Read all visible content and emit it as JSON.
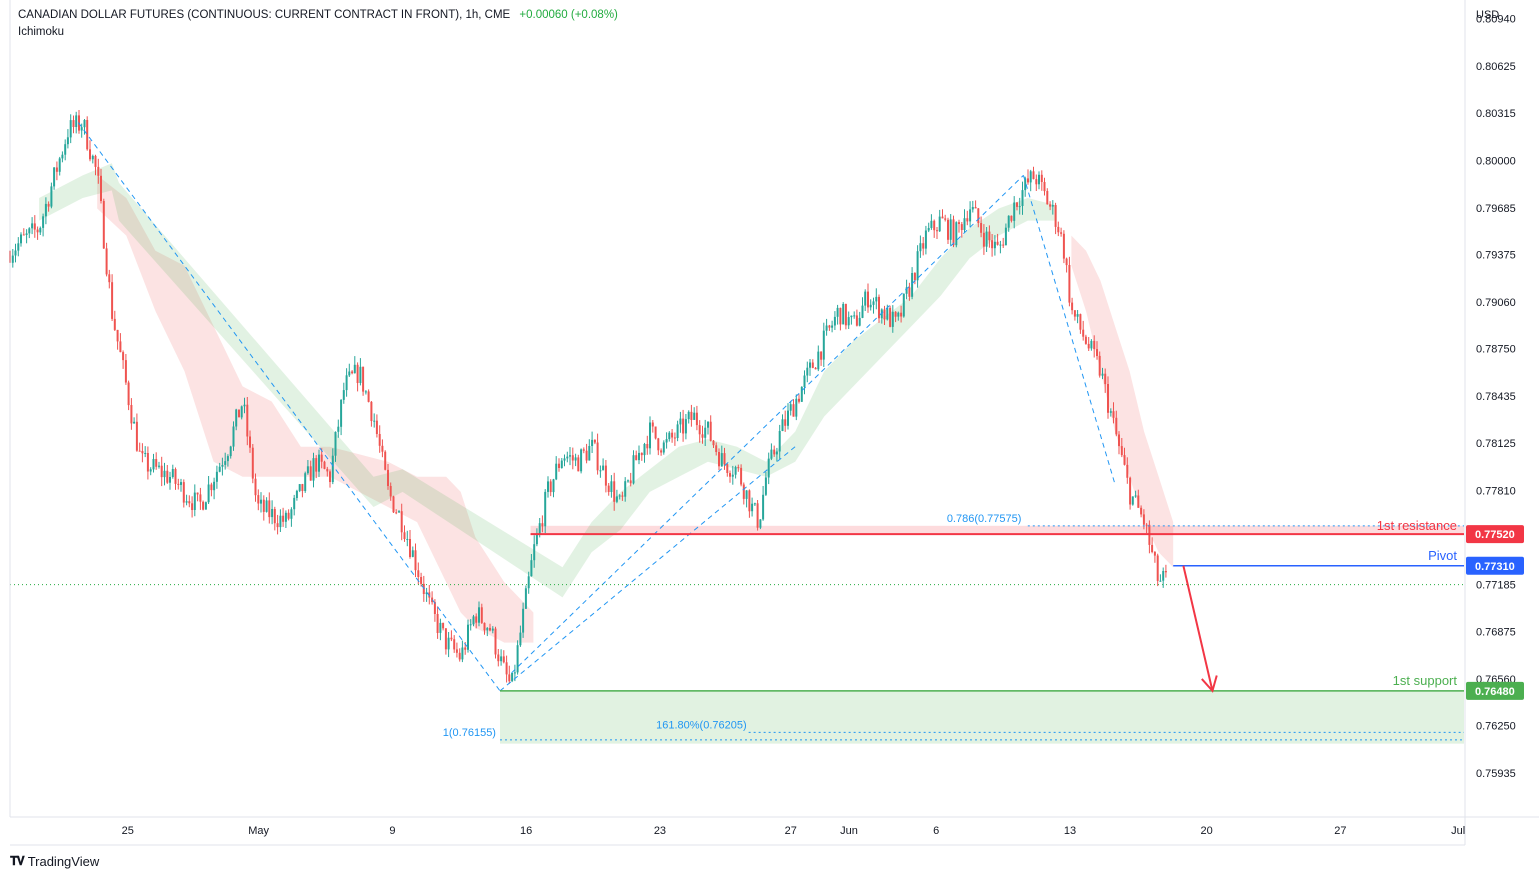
{
  "header": {
    "title": "CANADIAN DOLLAR FUTURES (CONTINUOUS: CURRENT CONTRACT IN FRONT), 1h, CME",
    "change": "+0.00060 (+0.08%)",
    "indicator": "Ichimoku"
  },
  "brand": {
    "name": "TradingView",
    "logo_icon": "tradingview-logo-icon"
  },
  "colors": {
    "up": "#26a69a",
    "down": "#ef5350",
    "resistance": "#f23645",
    "pivot": "#2962ff",
    "support": "#4caf50",
    "fib": "#2196f3",
    "arrow": "#f23645"
  },
  "chart_data": {
    "type": "candlestick",
    "currency": "USD",
    "y_ticks": [
      "0.80940",
      "0.80625",
      "0.80315",
      "0.80000",
      "0.79685",
      "0.79375",
      "0.79060",
      "0.78750",
      "0.78435",
      "0.78125",
      "0.77810",
      "0.76875",
      "0.76560",
      "0.76250",
      "0.75935"
    ],
    "ylim": [
      0.7565,
      0.8105
    ],
    "x_labels": [
      "25",
      "May",
      "9",
      "16",
      "23",
      "27",
      "Jun",
      "6",
      "13",
      "20",
      "27",
      "Jul"
    ],
    "price_path": [
      [
        0,
        0.794
      ],
      [
        0.02,
        0.7955
      ],
      [
        0.04,
        0.802
      ],
      [
        0.05,
        0.8025
      ],
      [
        0.06,
        0.799
      ],
      [
        0.07,
        0.79
      ],
      [
        0.08,
        0.785
      ],
      [
        0.09,
        0.78
      ],
      [
        0.11,
        0.779
      ],
      [
        0.13,
        0.777
      ],
      [
        0.15,
        0.781
      ],
      [
        0.16,
        0.784
      ],
      [
        0.17,
        0.777
      ],
      [
        0.19,
        0.776
      ],
      [
        0.21,
        0.78
      ],
      [
        0.22,
        0.779
      ],
      [
        0.23,
        0.785
      ],
      [
        0.24,
        0.786
      ],
      [
        0.25,
        0.783
      ],
      [
        0.26,
        0.778
      ],
      [
        0.27,
        0.776
      ],
      [
        0.28,
        0.773
      ],
      [
        0.29,
        0.77
      ],
      [
        0.3,
        0.768
      ],
      [
        0.31,
        0.767
      ],
      [
        0.32,
        0.77
      ],
      [
        0.33,
        0.769
      ],
      [
        0.34,
        0.766
      ],
      [
        0.345,
        0.765
      ],
      [
        0.35,
        0.768
      ],
      [
        0.36,
        0.774
      ],
      [
        0.37,
        0.778
      ],
      [
        0.38,
        0.7805
      ],
      [
        0.39,
        0.78
      ],
      [
        0.4,
        0.781
      ],
      [
        0.41,
        0.779
      ],
      [
        0.42,
        0.777
      ],
      [
        0.43,
        0.78
      ],
      [
        0.44,
        0.782
      ],
      [
        0.45,
        0.781
      ],
      [
        0.46,
        0.782
      ],
      [
        0.47,
        0.783
      ],
      [
        0.48,
        0.782
      ],
      [
        0.49,
        0.78
      ],
      [
        0.5,
        0.7795
      ],
      [
        0.51,
        0.777
      ],
      [
        0.515,
        0.776
      ],
      [
        0.52,
        0.779
      ],
      [
        0.53,
        0.782
      ],
      [
        0.54,
        0.784
      ],
      [
        0.55,
        0.786
      ],
      [
        0.56,
        0.788
      ],
      [
        0.57,
        0.79
      ],
      [
        0.58,
        0.789
      ],
      [
        0.59,
        0.791
      ],
      [
        0.6,
        0.79
      ],
      [
        0.61,
        0.789
      ],
      [
        0.62,
        0.792
      ],
      [
        0.63,
        0.795
      ],
      [
        0.64,
        0.796
      ],
      [
        0.65,
        0.795
      ],
      [
        0.66,
        0.797
      ],
      [
        0.67,
        0.795
      ],
      [
        0.68,
        0.794
      ],
      [
        0.69,
        0.797
      ],
      [
        0.7,
        0.7985
      ],
      [
        0.705,
        0.799
      ],
      [
        0.71,
        0.798
      ],
      [
        0.72,
        0.796
      ],
      [
        0.725,
        0.794
      ],
      [
        0.73,
        0.79
      ],
      [
        0.74,
        0.788
      ],
      [
        0.75,
        0.786
      ],
      [
        0.76,
        0.782
      ],
      [
        0.765,
        0.78
      ],
      [
        0.77,
        0.778
      ],
      [
        0.775,
        0.777
      ],
      [
        0.78,
        0.776
      ],
      [
        0.785,
        0.774
      ],
      [
        0.79,
        0.772
      ],
      [
        0.795,
        0.7722
      ]
    ],
    "levels": [
      {
        "name": "resistance",
        "label": "1st resistance",
        "value": 0.7752,
        "value_label": "0.77520"
      },
      {
        "name": "pivot",
        "label": "Pivot",
        "value": 0.7731,
        "value_label": "0.77310"
      },
      {
        "name": "support",
        "label": "1st support",
        "value": 0.7648,
        "value_label": "0.76480"
      },
      {
        "name": "current",
        "label": "",
        "value": 0.77185,
        "value_label": "0.77185"
      }
    ],
    "fib_labels": {
      "retracement": "0.786(0.77575)",
      "extension": "161.80%(0.76205)",
      "origin": "1(0.76155)"
    },
    "fib_values": {
      "retracement": 0.77575,
      "extension": 0.76205,
      "origin": 0.76155
    },
    "swing_lines": [
      [
        [
          0.047,
          0.8025
        ],
        [
          0.337,
          0.7648
        ]
      ],
      [
        [
          0.337,
          0.7648
        ],
        [
          0.54,
          0.781
        ]
      ],
      [
        [
          0.345,
          0.766
        ],
        [
          0.697,
          0.799
        ]
      ],
      [
        [
          0.697,
          0.799
        ],
        [
          0.76,
          0.7785
        ]
      ]
    ],
    "cloud_red": [
      [
        0.06,
        0.7968,
        0.799
      ],
      [
        0.08,
        0.795,
        0.7975
      ],
      [
        0.1,
        0.79,
        0.794
      ],
      [
        0.12,
        0.786,
        0.793
      ],
      [
        0.14,
        0.78,
        0.789
      ],
      [
        0.16,
        0.779,
        0.785
      ],
      [
        0.18,
        0.779,
        0.784
      ],
      [
        0.2,
        0.779,
        0.781
      ],
      [
        0.22,
        0.779,
        0.781
      ],
      [
        0.24,
        0.778,
        0.7805
      ],
      [
        0.26,
        0.777,
        0.78
      ],
      [
        0.28,
        0.776,
        0.779
      ],
      [
        0.3,
        0.772,
        0.779
      ],
      [
        0.31,
        0.77,
        0.778
      ],
      [
        0.32,
        0.769,
        0.775
      ],
      [
        0.34,
        0.768,
        0.772
      ],
      [
        0.36,
        0.768,
        0.77
      ]
    ],
    "cloud_green": [
      [
        0.02,
        0.796,
        0.7975
      ],
      [
        0.05,
        0.7975,
        0.799
      ],
      [
        0.07,
        0.798,
        0.7998
      ],
      [
        0.075,
        0.796,
        0.7985
      ],
      [
        0.25,
        0.777,
        0.779
      ],
      [
        0.27,
        0.778,
        0.7795
      ],
      [
        0.38,
        0.771,
        0.773
      ],
      [
        0.4,
        0.774,
        0.776
      ],
      [
        0.42,
        0.7755,
        0.778
      ],
      [
        0.44,
        0.778,
        0.7795
      ],
      [
        0.46,
        0.779,
        0.781
      ],
      [
        0.48,
        0.78,
        0.7815
      ],
      [
        0.5,
        0.7795,
        0.781
      ],
      [
        0.52,
        0.779,
        0.78
      ],
      [
        0.54,
        0.78,
        0.782
      ],
      [
        0.56,
        0.783,
        0.786
      ],
      [
        0.58,
        0.785,
        0.788
      ],
      [
        0.6,
        0.787,
        0.7895
      ],
      [
        0.62,
        0.789,
        0.791
      ],
      [
        0.64,
        0.791,
        0.7935
      ],
      [
        0.66,
        0.7935,
        0.7955
      ],
      [
        0.68,
        0.795,
        0.7968
      ],
      [
        0.7,
        0.796,
        0.7975
      ],
      [
        0.72,
        0.796,
        0.797
      ]
    ],
    "cloud_red_future": [
      [
        0.73,
        0.793,
        0.795
      ],
      [
        0.74,
        0.79,
        0.794
      ],
      [
        0.75,
        0.786,
        0.792
      ],
      [
        0.76,
        0.782,
        0.789
      ],
      [
        0.77,
        0.779,
        0.786
      ],
      [
        0.78,
        0.776,
        0.782
      ],
      [
        0.79,
        0.774,
        0.779
      ],
      [
        0.8,
        0.773,
        0.776
      ]
    ],
    "projection_arrow": [
      [
        0.807,
        0.7731
      ],
      [
        0.827,
        0.7648
      ]
    ],
    "support_zone": [
      0.7613,
      0.7648
    ]
  }
}
